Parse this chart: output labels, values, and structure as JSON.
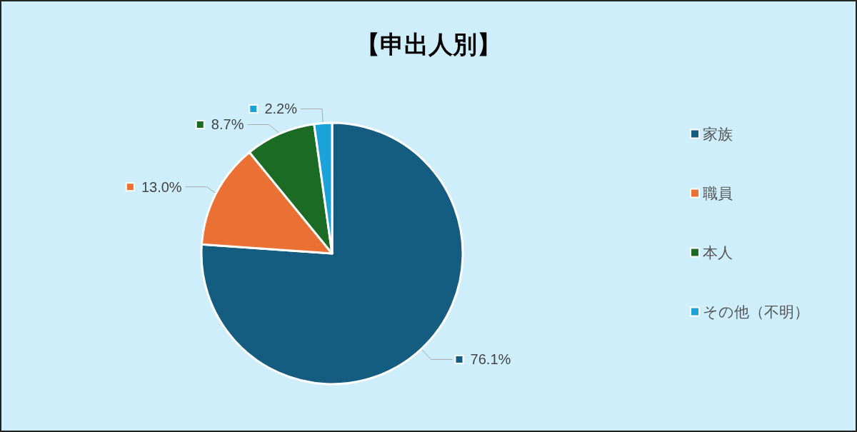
{
  "chart_data": {
    "type": "pie",
    "title": "【申出人別】",
    "categories": [
      "家族",
      "職員",
      "本人",
      "その他（不明）"
    ],
    "values": [
      76.1,
      13.0,
      8.7,
      2.2
    ],
    "value_labels": [
      "76.1%",
      "13.0%",
      "8.7%",
      "2.2%"
    ],
    "colors": [
      "#155d80",
      "#eb7033",
      "#1b6b24",
      "#1ba2d8"
    ],
    "legend": "right"
  }
}
